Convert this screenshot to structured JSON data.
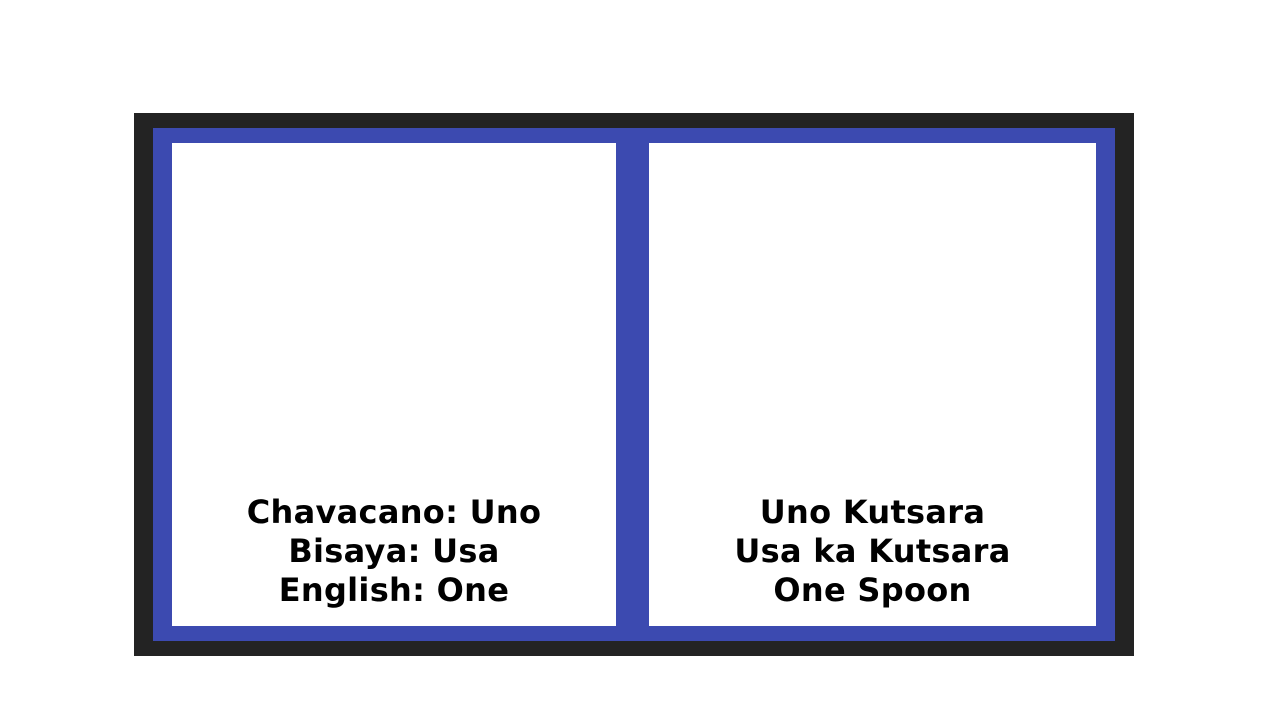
{
  "colors": {
    "outer_frame": "#232323",
    "board": "#3c4ab0",
    "card": "#ffffff",
    "text": "#000000"
  },
  "cards": [
    {
      "lines": [
        "Chavacano: Uno",
        "Bisaya: Usa",
        "English: One"
      ]
    },
    {
      "lines": [
        "Uno Kutsara",
        "Usa ka Kutsara",
        "One Spoon"
      ]
    }
  ]
}
